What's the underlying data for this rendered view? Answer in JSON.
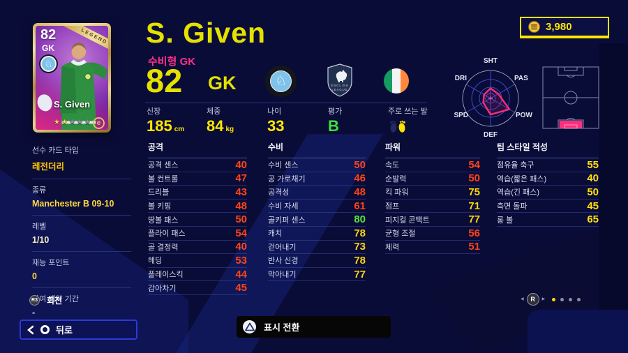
{
  "header": {
    "coins": "3,980"
  },
  "card": {
    "rating": "82",
    "position": "GK",
    "ribbon": "LEGEND",
    "name": "S. Given",
    "stars_total": 5,
    "stars_filled": 2,
    "star_char": "★",
    "brand_mark": "e"
  },
  "player": {
    "name": "S. Given",
    "style_label": "수비형 GK",
    "overall": "82",
    "position": "GK",
    "physical": [
      {
        "label": "신장",
        "value": "185",
        "unit": "cm"
      },
      {
        "label": "체중",
        "value": "84",
        "unit": "kg"
      }
    ],
    "age": {
      "label": "나이",
      "value": "33"
    },
    "grade": {
      "label": "평가",
      "value": "B"
    },
    "foot": {
      "label": "주로 쓰는 발",
      "value": "right"
    }
  },
  "badges": {
    "club": "MAS FOOTBALL CLUB",
    "league_line1": "ENGLISH",
    "league_line2": "LEAGUE",
    "nation": "Ireland"
  },
  "sidebar": {
    "items": [
      {
        "label": "선수 카드 타입",
        "value": "레전더리",
        "color": "#ffc400"
      },
      {
        "label": "종류",
        "value": "Manchester B 09-10",
        "color": "#ffd83d"
      },
      {
        "label": "레벨",
        "value": "1/10",
        "color": "#f5eec2"
      },
      {
        "label": "재능 포인트",
        "value": "0",
        "color": "#ffd83d"
      },
      {
        "label": "잔여 계약 기간",
        "value": "-",
        "color": "#dfe2f2"
      }
    ]
  },
  "radar": {
    "labels": [
      "SHT",
      "PAS",
      "POW",
      "DEF",
      "SPD",
      "DRI"
    ],
    "values": [
      0.36,
      0.32,
      0.78,
      0.58,
      0.3,
      0.27
    ]
  },
  "stats": {
    "columns": [
      {
        "title": "공격",
        "rows": [
          {
            "label": "공격 센스",
            "value": 40,
            "tier": "low"
          },
          {
            "label": "볼 컨트롤",
            "value": 47,
            "tier": "low"
          },
          {
            "label": "드리블",
            "value": 43,
            "tier": "low"
          },
          {
            "label": "볼 키핑",
            "value": 48,
            "tier": "low"
          },
          {
            "label": "땅볼 패스",
            "value": 50,
            "tier": "low"
          },
          {
            "label": "플라이 패스",
            "value": 54,
            "tier": "low"
          },
          {
            "label": "골 결정력",
            "value": 40,
            "tier": "low"
          },
          {
            "label": "헤딩",
            "value": 53,
            "tier": "low"
          },
          {
            "label": "플레이스킥",
            "value": 44,
            "tier": "low"
          },
          {
            "label": "감아차기",
            "value": 45,
            "tier": "low"
          }
        ]
      },
      {
        "title": "수비",
        "rows": [
          {
            "label": "수비 센스",
            "value": 50,
            "tier": "low"
          },
          {
            "label": "공 가로채기",
            "value": 46,
            "tier": "low"
          },
          {
            "label": "공격성",
            "value": 48,
            "tier": "low"
          },
          {
            "label": "수비 자세",
            "value": 61,
            "tier": "low"
          },
          {
            "label": "골키퍼 센스",
            "value": 80,
            "tier": "high"
          },
          {
            "label": "캐치",
            "value": 78,
            "tier": "mid"
          },
          {
            "label": "걷어내기",
            "value": 73,
            "tier": "mid"
          },
          {
            "label": "반사 신경",
            "value": 78,
            "tier": "mid"
          },
          {
            "label": "막아내기",
            "value": 77,
            "tier": "mid"
          }
        ]
      },
      {
        "title": "파워",
        "rows": [
          {
            "label": "속도",
            "value": 54,
            "tier": "low"
          },
          {
            "label": "순발력",
            "value": 50,
            "tier": "low"
          },
          {
            "label": "킥 파워",
            "value": 75,
            "tier": "mid"
          },
          {
            "label": "점프",
            "value": 71,
            "tier": "mid"
          },
          {
            "label": "피지컬 콘택트",
            "value": 77,
            "tier": "mid"
          },
          {
            "label": "균형 조절",
            "value": 56,
            "tier": "low"
          },
          {
            "label": "체력",
            "value": 51,
            "tier": "low"
          }
        ]
      },
      {
        "title": "팀 스타일 적성",
        "rows": [
          {
            "label": "점유율 축구",
            "value": 55,
            "tier": "team"
          },
          {
            "label": "역습(짧은 패스)",
            "value": 40,
            "tier": "team"
          },
          {
            "label": "역습(긴 패스)",
            "value": 50,
            "tier": "team"
          },
          {
            "label": "측면 돌파",
            "value": 45,
            "tier": "team"
          },
          {
            "label": "롱 볼",
            "value": 65,
            "tier": "team"
          }
        ]
      }
    ]
  },
  "footer": {
    "rotate_hint": {
      "button": "R3",
      "label": "회전"
    },
    "back": {
      "label": "뒤로"
    },
    "toggle": {
      "label": "표시 전환"
    },
    "pager": {
      "button": "R",
      "dots": 4,
      "active": 0
    }
  }
}
